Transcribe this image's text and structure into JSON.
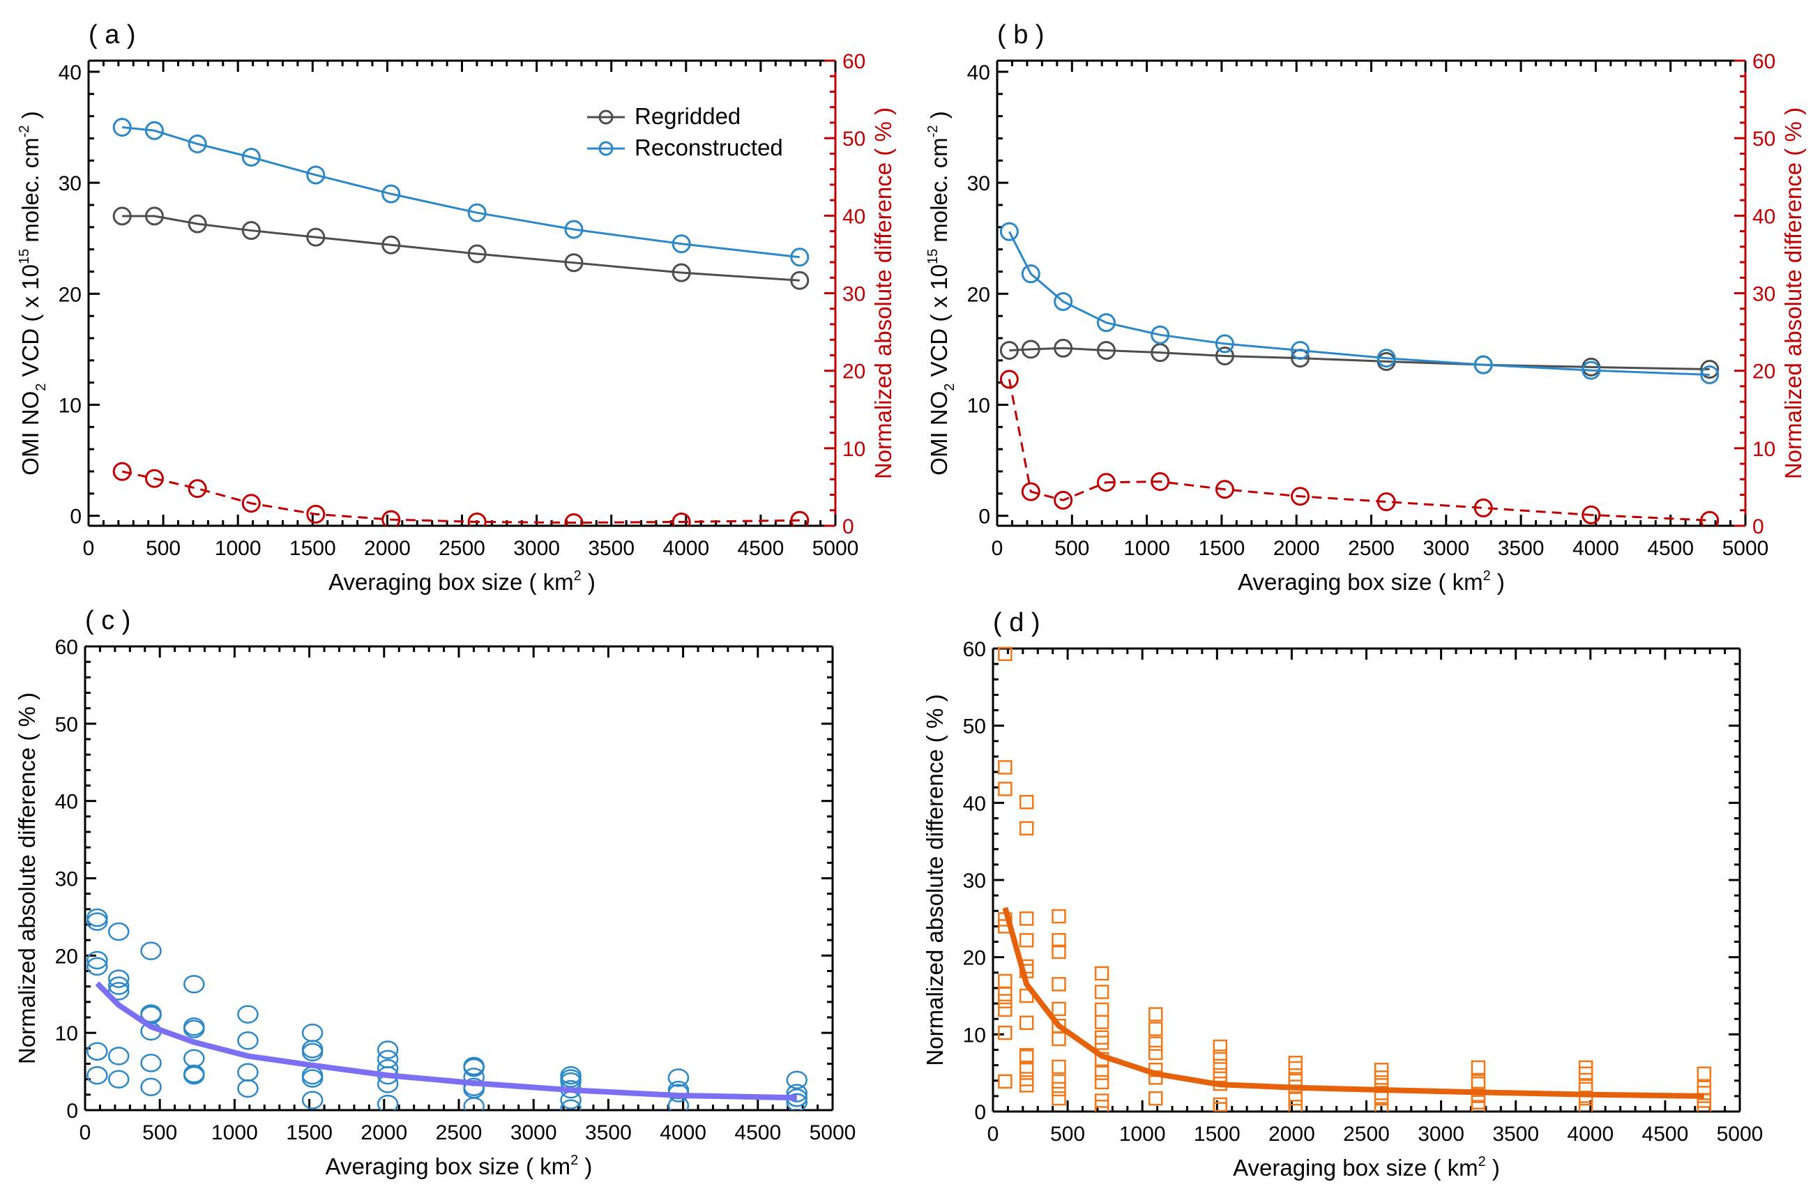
{
  "chart_data": [
    {
      "panel": "( a )",
      "type": "line",
      "xlabel": {
        "text": "Averaging box size ( km",
        "sup": "2",
        "end": " )"
      },
      "ylabel_left": {
        "a": "OMI NO",
        "sub": "2",
        "b": " VCD ( x 10",
        "sup": "15",
        "c": " molec. cm",
        "sup2": "-2",
        "d": " )"
      },
      "ylabel_right": "Normalized absolute difference ( % )",
      "xlim": [
        0,
        5000
      ],
      "xticks": [
        0,
        500,
        1000,
        1500,
        2000,
        2500,
        3000,
        3500,
        4000,
        4500,
        5000
      ],
      "ylim": [
        -0.9,
        41
      ],
      "yticks": [
        0,
        10,
        20,
        30,
        40
      ],
      "y2lim": [
        0,
        60
      ],
      "y2ticks": [
        0,
        10,
        20,
        30,
        40,
        50,
        60
      ],
      "legend": {
        "position": "top-right"
      },
      "series": [
        {
          "name": "Regridded",
          "axis": "left",
          "color": "#4d4d4d",
          "marker": "circle",
          "dash": false,
          "legend": true,
          "x": [
            225,
            441,
            729,
            1089,
            1521,
            2025,
            2601,
            3249,
            3969,
            4761
          ],
          "y": [
            27.0,
            27.0,
            26.3,
            25.7,
            25.1,
            24.4,
            23.6,
            22.8,
            21.9,
            21.2
          ]
        },
        {
          "name": "Reconstructed",
          "axis": "left",
          "color": "#2b88c8",
          "marker": "circle",
          "dash": false,
          "legend": true,
          "x": [
            225,
            441,
            729,
            1089,
            1521,
            2025,
            2601,
            3249,
            3969,
            4761
          ],
          "y": [
            35.0,
            34.7,
            33.5,
            32.3,
            30.7,
            29.0,
            27.3,
            25.8,
            24.5,
            23.3
          ]
        },
        {
          "name": "Normalized absolute difference",
          "axis": "right",
          "color": "#c00000",
          "marker": "circle",
          "dash": true,
          "legend": false,
          "x": [
            225,
            441,
            729,
            1089,
            1521,
            2025,
            2601,
            3249,
            3969,
            4761
          ],
          "y": [
            7.0,
            6.1,
            4.8,
            2.9,
            1.5,
            0.8,
            0.5,
            0.4,
            0.5,
            0.7
          ]
        }
      ]
    },
    {
      "panel": "( b )",
      "type": "line",
      "xlabel": {
        "text": "Averaging box size ( km",
        "sup": "2",
        "end": " )"
      },
      "ylabel_left": {
        "a": "OMI NO",
        "sub": "2",
        "b": " VCD ( x 10",
        "sup": "15",
        "c": " molec. cm",
        "sup2": "-2",
        "d": " )"
      },
      "ylabel_right": "Normalized absolute difference ( % )",
      "xlim": [
        0,
        5000
      ],
      "xticks": [
        0,
        500,
        1000,
        1500,
        2000,
        2500,
        3000,
        3500,
        4000,
        4500,
        5000
      ],
      "ylim": [
        -0.9,
        41
      ],
      "yticks": [
        0,
        10,
        20,
        30,
        40
      ],
      "y2lim": [
        0,
        60
      ],
      "y2ticks": [
        0,
        10,
        20,
        30,
        40,
        50,
        60
      ],
      "series": [
        {
          "name": "Regridded",
          "axis": "left",
          "color": "#4d4d4d",
          "marker": "circle",
          "dash": false,
          "x": [
            81,
            225,
            441,
            729,
            1089,
            1521,
            2025,
            2601,
            3249,
            3969,
            4761
          ],
          "y": [
            14.9,
            15.0,
            15.1,
            14.9,
            14.7,
            14.4,
            14.2,
            13.9,
            13.6,
            13.4,
            13.2
          ]
        },
        {
          "name": "Reconstructed",
          "axis": "left",
          "color": "#2b88c8",
          "marker": "circle",
          "dash": false,
          "x": [
            81,
            225,
            441,
            729,
            1089,
            1521,
            2025,
            2601,
            3249,
            3969,
            4761
          ],
          "y": [
            25.6,
            21.8,
            19.3,
            17.4,
            16.3,
            15.5,
            14.9,
            14.2,
            13.6,
            13.1,
            12.7
          ]
        },
        {
          "name": "Normalized absolute difference",
          "axis": "right",
          "color": "#c00000",
          "marker": "circle",
          "dash": true,
          "x": [
            81,
            225,
            441,
            729,
            1089,
            1521,
            2025,
            2601,
            3249,
            3969,
            4761
          ],
          "y": [
            18.9,
            4.4,
            3.3,
            5.6,
            5.7,
            4.7,
            3.8,
            3.1,
            2.3,
            1.4,
            0.7
          ]
        }
      ]
    },
    {
      "panel": "( c )",
      "type": "scatter",
      "xlabel": {
        "text": "Averaging box size ( km",
        "sup": "2",
        "end": " )"
      },
      "ylabel_left_text": "Normalized absolute difference ( % )",
      "xlim": [
        0,
        5000
      ],
      "xticks": [
        0,
        500,
        1000,
        1500,
        2000,
        2500,
        3000,
        3500,
        4000,
        4500,
        5000
      ],
      "ylim": [
        0,
        60
      ],
      "yticks": [
        0,
        10,
        20,
        30,
        40,
        50,
        60
      ],
      "scatter": {
        "color": "#2b88c8",
        "marker": "circle",
        "groups": [
          {
            "x": 81,
            "y": [
              24.9,
              24.4,
              19.4,
              18.6,
              7.6,
              4.5
            ]
          },
          {
            "x": 225,
            "y": [
              23.1,
              17.0,
              16.1,
              15.4,
              7.0,
              4.0
            ]
          },
          {
            "x": 441,
            "y": [
              20.6,
              12.5,
              12.3,
              10.2,
              6.1,
              3.0
            ]
          },
          {
            "x": 729,
            "y": [
              16.3,
              10.8,
              10.5,
              6.7,
              4.7,
              4.5
            ]
          },
          {
            "x": 1089,
            "y": [
              12.4,
              9.0,
              4.9,
              2.8
            ]
          },
          {
            "x": 1521,
            "y": [
              10.0,
              7.9,
              7.5,
              4.5,
              4.1,
              1.3
            ]
          },
          {
            "x": 2025,
            "y": [
              7.8,
              6.6,
              5.4,
              4.5,
              3.4,
              0.8
            ]
          },
          {
            "x": 2601,
            "y": [
              5.7,
              5.5,
              4.3,
              3.0,
              2.7,
              0.5
            ]
          },
          {
            "x": 3249,
            "y": [
              4.5,
              4.1,
              3.7,
              2.7,
              1.3,
              0.2
            ]
          },
          {
            "x": 3969,
            "y": [
              4.2,
              2.6,
              2.2,
              0.6
            ]
          },
          {
            "x": 4761,
            "y": [
              3.9,
              2.2,
              1.6,
              1.0
            ]
          }
        ]
      },
      "fit": {
        "color": "#7b70f4",
        "x": [
          81,
          225,
          441,
          729,
          1089,
          1521,
          2025,
          2601,
          3249,
          3969,
          4761
        ],
        "y": [
          16.4,
          13.6,
          10.8,
          8.8,
          7.0,
          5.8,
          4.5,
          3.5,
          2.6,
          1.9,
          1.6
        ]
      }
    },
    {
      "panel": "( d )",
      "type": "scatter",
      "xlabel": {
        "text": "Averaging box size ( km",
        "sup": "2",
        "end": " )"
      },
      "ylabel_left_text": "Normalized absolute difference ( % )",
      "xlim": [
        0,
        5000
      ],
      "xticks": [
        0,
        500,
        1000,
        1500,
        2000,
        2500,
        3000,
        3500,
        4000,
        4500,
        5000
      ],
      "ylim": [
        0,
        60
      ],
      "yticks": [
        0,
        10,
        20,
        30,
        40,
        50,
        60
      ],
      "scatter": {
        "color": "#f07818",
        "marker": "square",
        "groups": [
          {
            "x": 81,
            "y": [
              59.3,
              44.6,
              41.8,
              24.9,
              24.0,
              16.9,
              15.2,
              14.3,
              13.2,
              10.2,
              3.9
            ]
          },
          {
            "x": 225,
            "y": [
              40.1,
              36.7,
              25.0,
              22.2,
              18.8,
              18.2,
              15.0,
              11.5,
              7.3,
              7.1,
              5.4,
              4.2,
              3.4
            ]
          },
          {
            "x": 441,
            "y": [
              25.3,
              22.2,
              20.7,
              16.5,
              13.3,
              11.1,
              9.4,
              5.8,
              3.9,
              2.9,
              1.7
            ]
          },
          {
            "x": 729,
            "y": [
              17.9,
              15.5,
              13.2,
              11.6,
              9.6,
              8.9,
              6.8,
              5.0,
              3.8,
              1.4,
              0.6
            ]
          },
          {
            "x": 1089,
            "y": [
              12.6,
              10.7,
              8.8,
              7.6,
              5.4,
              4.4,
              1.7
            ]
          },
          {
            "x": 1521,
            "y": [
              8.4,
              7.1,
              5.9,
              4.7,
              3.6,
              0.9,
              0.3
            ]
          },
          {
            "x": 2025,
            "y": [
              6.3,
              5.6,
              4.2,
              3.2,
              1.7,
              0.6
            ]
          },
          {
            "x": 2601,
            "y": [
              5.4,
              4.4,
              3.4,
              2.4,
              1.7,
              0.3
            ]
          },
          {
            "x": 3249,
            "y": [
              5.7,
              3.9,
              3.6,
              2.2,
              1.2,
              0.4
            ]
          },
          {
            "x": 3969,
            "y": [
              5.7,
              4.9,
              3.4,
              2.9,
              1.7,
              0.4
            ]
          },
          {
            "x": 4761,
            "y": [
              4.9,
              3.1,
              2.4,
              1.4,
              0.4
            ]
          }
        ]
      },
      "fit": {
        "color": "#e5620a",
        "x": [
          81,
          225,
          441,
          729,
          1089,
          1521,
          2025,
          2601,
          3249,
          3969,
          4761
        ],
        "y": [
          26.4,
          16.5,
          11.1,
          7.2,
          4.9,
          3.5,
          3.1,
          2.8,
          2.5,
          2.2,
          2.0
        ]
      }
    }
  ]
}
